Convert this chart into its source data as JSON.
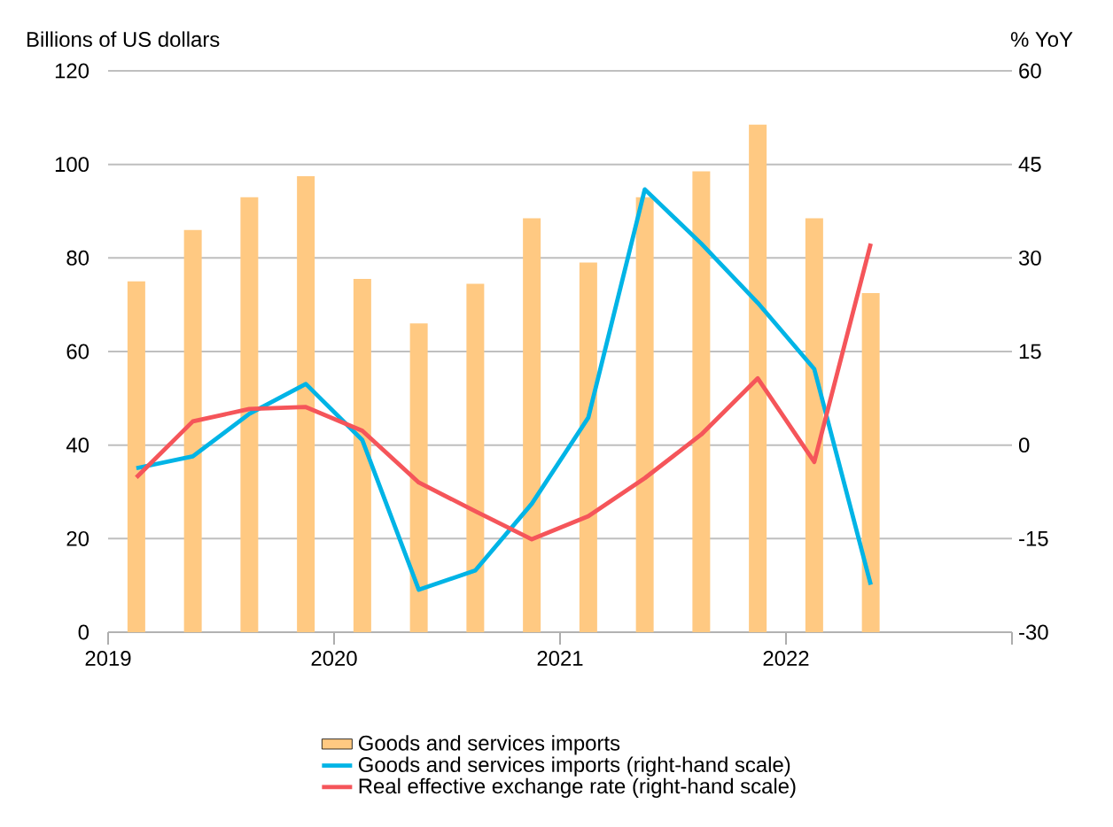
{
  "chart_data": {
    "type": "bar",
    "ylabel": "Billions of US dollars",
    "y2label": "% YoY",
    "x": [
      2019.125,
      2019.375,
      2019.625,
      2019.875,
      2020.125,
      2020.375,
      2020.625,
      2020.875,
      2021.125,
      2021.375,
      2021.625,
      2021.875,
      2022.125,
      2022.375
    ],
    "series": [
      {
        "name": "Goods and services imports",
        "color": "#ffc982",
        "values": [
          75,
          86,
          93,
          97.5,
          75.5,
          66,
          74.5,
          88.5,
          79,
          93,
          98.5,
          108.5,
          88.5,
          72.5
        ]
      },
      {
        "name": "Goods and services imports (right-hand scale)",
        "type": "line",
        "axis": "y2",
        "color": "#00b4e6",
        "values": [
          -3.7,
          -1.8,
          5,
          9.8,
          0.8,
          -23.2,
          -20.1,
          -9.4,
          4.4,
          41,
          32.3,
          22.8,
          12.2,
          -22.4
        ]
      },
      {
        "name": "Real effective exchange rate (right-hand scale)",
        "type": "line",
        "axis": "y2",
        "color": "#f5555a",
        "values": [
          -5.2,
          3.8,
          5.8,
          6.1,
          2.3,
          -6,
          -10.6,
          -15.1,
          -11.4,
          -5.3,
          1.7,
          10.7,
          -2.7,
          32.3
        ]
      }
    ],
    "xlim": [
      2019,
      2023
    ],
    "xticks": [
      2019,
      2020,
      2021,
      2022,
      {
        "value": 2023,
        "label": null
      }
    ],
    "ylim": [
      0,
      120
    ],
    "yticks": [
      0,
      20,
      40,
      60,
      80,
      100,
      120
    ],
    "y2lim": [
      -30,
      60
    ],
    "y2ticks": [
      -30,
      -15,
      0,
      15,
      30,
      45,
      60
    ],
    "grid": "y",
    "legend": "bottom"
  }
}
